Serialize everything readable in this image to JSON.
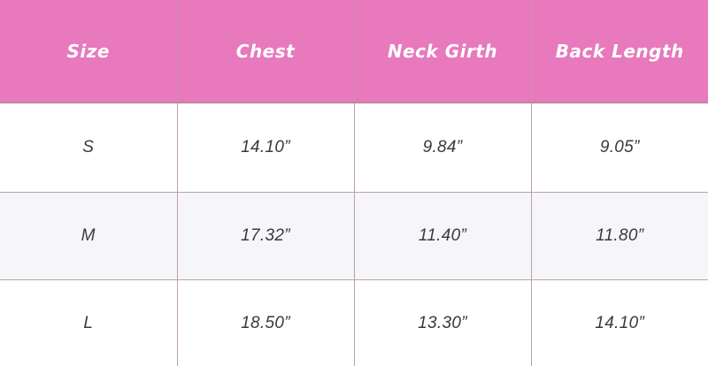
{
  "chart_data": {
    "type": "table",
    "columns": [
      "Size",
      "Chest",
      "Neck Girth",
      "Back Length"
    ],
    "rows": [
      [
        "S",
        "14.10”",
        "9.84”",
        "9.05”"
      ],
      [
        "M",
        "17.32”",
        "11.40”",
        "11.80”"
      ],
      [
        "L",
        "18.50”",
        "13.30”",
        "14.10”"
      ]
    ],
    "layout": {
      "header_position": "top",
      "grid": "on",
      "outer_border": "off",
      "alternating_rows": true
    }
  },
  "colors": {
    "header_bg": "#E779BC",
    "header_text": "#FFFFFF",
    "row_bg": "#FFFFFF",
    "row_alt_bg": "#F6F6F8",
    "grid_line": "#BDA0AE",
    "cell_text": "#3A3A3C"
  }
}
